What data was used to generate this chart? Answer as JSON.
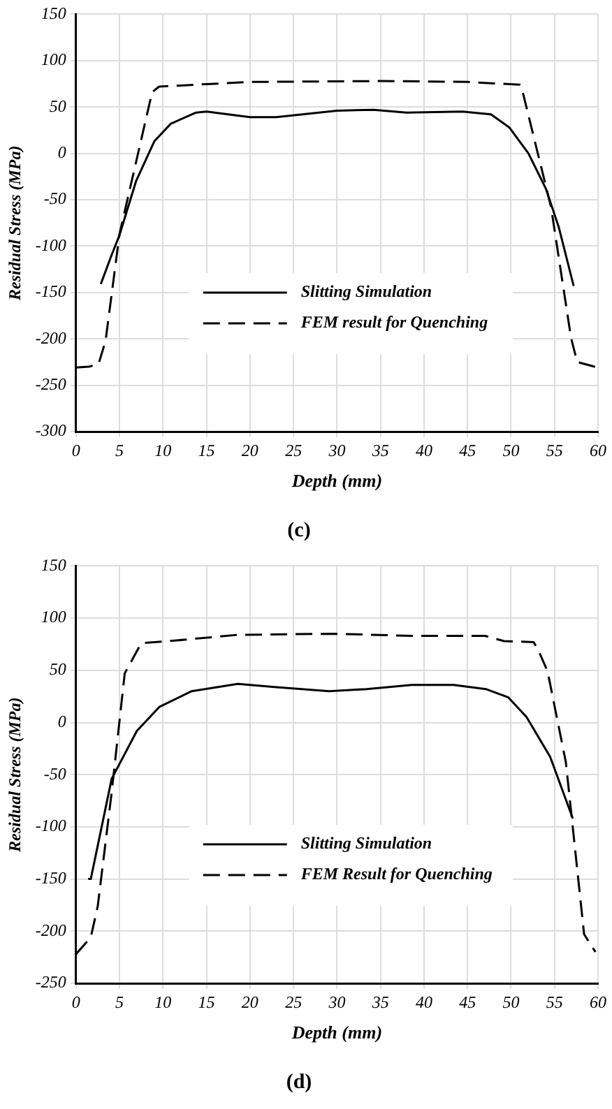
{
  "chart_data": [
    {
      "type": "line",
      "title": "(c)",
      "xlabel": "Depth (mm)",
      "ylabel": "Residual Stress (MPa)",
      "xlim": [
        0,
        60
      ],
      "xticks": [
        0,
        5,
        10,
        15,
        20,
        25,
        30,
        35,
        40,
        45,
        50,
        55,
        60
      ],
      "ylim": [
        -300,
        150
      ],
      "yticks": [
        -300,
        -250,
        -200,
        -150,
        -100,
        -50,
        0,
        50,
        100,
        150
      ],
      "grid": true,
      "legend": "bottom",
      "marker": "none",
      "series": [
        {
          "name": "Slitting Simulation",
          "color": "#000000",
          "line_style": "solid",
          "x": [
            2.85,
            4,
            5,
            6.9,
            9,
            10.9,
            13.8,
            15,
            20,
            23,
            30,
            34.2,
            38,
            44.4,
            47.7,
            49.8,
            52,
            54,
            55.5,
            57.2
          ],
          "values": [
            -141,
            -112,
            -88,
            -30,
            13,
            32,
            44,
            45,
            39,
            39,
            46,
            47,
            44,
            45,
            42,
            28,
            0,
            -38,
            -80,
            -143
          ]
        },
        {
          "name": "FEM result for Quenching",
          "color": "#000000",
          "line_style": "dashed",
          "x": [
            0,
            1.5,
            2.6,
            3.4,
            5,
            8.75,
            9.55,
            20,
            35,
            45,
            51,
            51.4,
            54.6,
            56.9,
            57.6,
            60
          ],
          "values": [
            -231,
            -230,
            -227,
            -202,
            -87,
            66,
            72,
            77,
            78,
            77,
            74,
            64,
            -58,
            -199,
            -225,
            -231
          ]
        }
      ]
    },
    {
      "type": "line",
      "title": "(d)",
      "xlabel": "Depth (mm)",
      "ylabel": "Residual Stress (MPa)",
      "xlim": [
        0,
        60
      ],
      "xticks": [
        0,
        5,
        10,
        15,
        20,
        25,
        30,
        35,
        40,
        45,
        50,
        55,
        60
      ],
      "ylim": [
        -250,
        150
      ],
      "yticks": [
        -250,
        -200,
        -150,
        -100,
        -50,
        0,
        50,
        100,
        150
      ],
      "grid": true,
      "legend": "bottom",
      "marker": "none",
      "series": [
        {
          "name": "Slitting Simulation",
          "color": "#000000",
          "line_style": "solid",
          "x": [
            1.4,
            1.7,
            4.1,
            7,
            9.6,
            13.3,
            18.6,
            22.8,
            29.1,
            33.4,
            38.6,
            43.4,
            47.1,
            49.7,
            51.8,
            54.5,
            57.1
          ],
          "values": [
            -150,
            -150,
            -54,
            -8,
            15,
            30,
            37,
            34,
            30,
            32,
            36,
            36,
            32,
            24,
            5,
            -33,
            -92
          ]
        },
        {
          "name": "FEM Result for Quenching",
          "color": "#000000",
          "line_style": "dashed",
          "x": [
            0,
            1.7,
            2.5,
            4.1,
            5.6,
            7.5,
            10.7,
            18.6,
            29.7,
            38.6,
            47,
            49.2,
            52.6,
            53.1,
            54.2,
            56.3,
            58.4,
            59.7
          ],
          "values": [
            -222,
            -206,
            -176,
            -67,
            47,
            76,
            78,
            84,
            85,
            83,
            83,
            78,
            77,
            70,
            49,
            -38,
            -203,
            -220
          ]
        }
      ]
    }
  ]
}
